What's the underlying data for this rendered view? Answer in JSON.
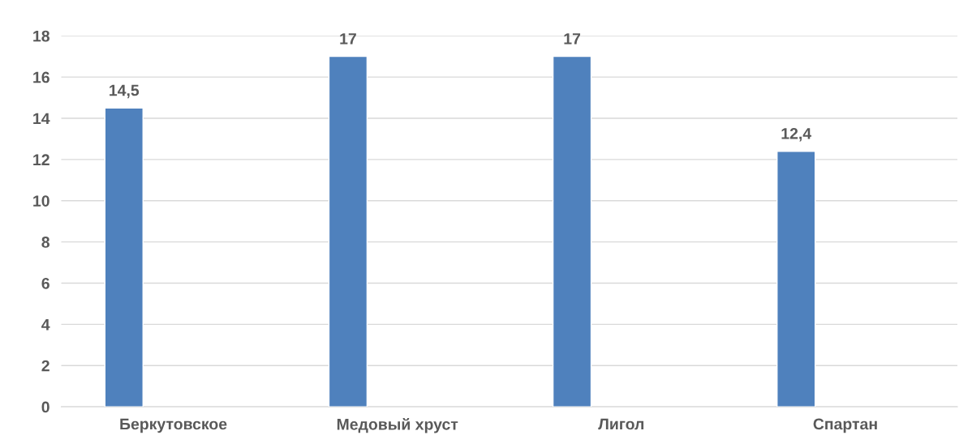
{
  "chart_data": {
    "type": "bar",
    "categories": [
      "Беркутовское",
      "Медовый хруст",
      "Лигол",
      "Спартан"
    ],
    "values": [
      14.5,
      17,
      17,
      12.4
    ],
    "color": "#4f81bd",
    "value_labels": [
      "14,5",
      "17",
      "17",
      "12,4"
    ],
    "ylim": [
      0,
      18
    ],
    "yticks": [
      0,
      2,
      4,
      6,
      8,
      10,
      12,
      14,
      16,
      18
    ],
    "grid": "y",
    "legend": false
  }
}
